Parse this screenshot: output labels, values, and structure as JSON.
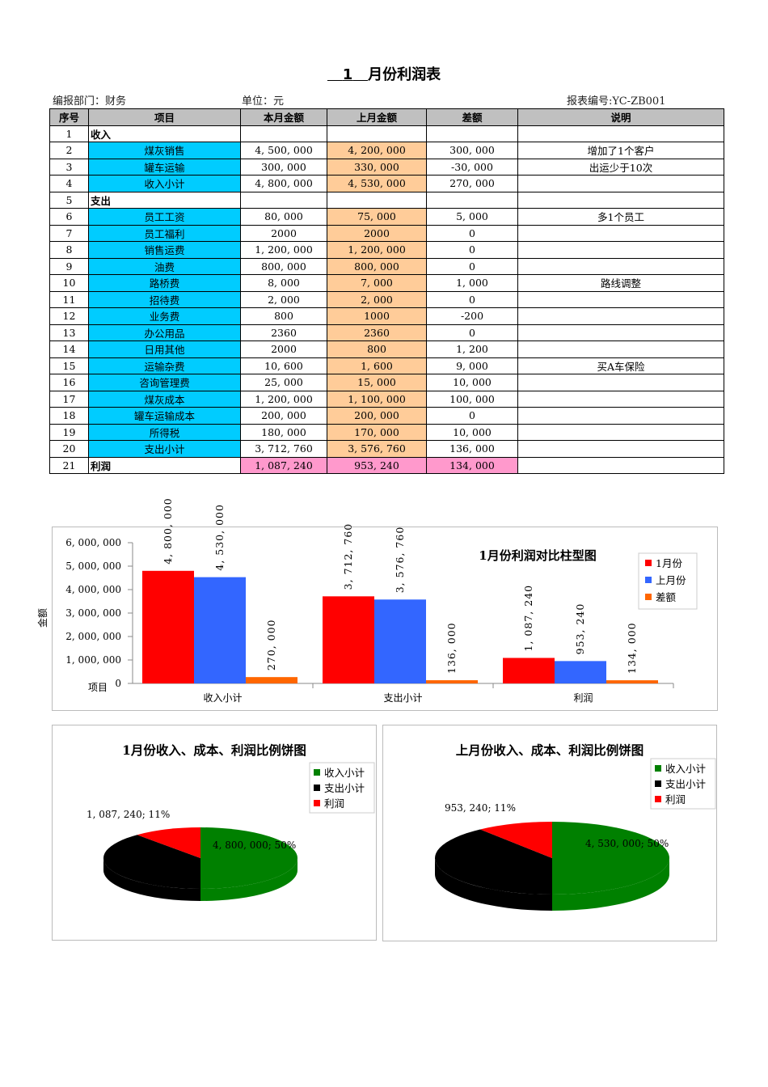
{
  "title_num": "1",
  "title_text": "月份利润表",
  "meta": {
    "dept": "编报部门：财务",
    "unit": "单位：元",
    "code": "报表编号:YC-ZB001"
  },
  "headers": [
    "序号",
    "项目",
    "本月金额",
    "上月金额",
    "差额",
    "说明"
  ],
  "rows": [
    [
      "1",
      "收入",
      "",
      "",
      "",
      ""
    ],
    [
      "2",
      "煤灰销售",
      "4, 500, 000",
      "4, 200, 000",
      "300, 000",
      "增加了1个客户"
    ],
    [
      "3",
      "罐车运输",
      "300, 000",
      "330, 000",
      "-30, 000",
      "出运少于10次"
    ],
    [
      "4",
      "收入小计",
      "4, 800, 000",
      "4, 530, 000",
      "270, 000",
      ""
    ],
    [
      "5",
      "支出",
      "",
      "",
      "",
      ""
    ],
    [
      "6",
      "员工工资",
      "80, 000",
      "75, 000",
      "5, 000",
      "多1个员工"
    ],
    [
      "7",
      "员工福利",
      "2000",
      "2000",
      "0",
      ""
    ],
    [
      "8",
      "销售运费",
      "1, 200, 000",
      "1, 200, 000",
      "0",
      ""
    ],
    [
      "9",
      "油费",
      "800, 000",
      "800, 000",
      "0",
      ""
    ],
    [
      "10",
      "路桥费",
      "8, 000",
      "7, 000",
      "1, 000",
      "路线调整"
    ],
    [
      "11",
      "招待费",
      "2, 000",
      "2, 000",
      "0",
      ""
    ],
    [
      "12",
      "业务费",
      "800",
      "1000",
      "-200",
      ""
    ],
    [
      "13",
      "办公用品",
      "2360",
      "2360",
      "0",
      ""
    ],
    [
      "14",
      "日用其他",
      "2000",
      "800",
      "1, 200",
      ""
    ],
    [
      "15",
      "运输杂费",
      "10, 600",
      "1, 600",
      "9, 000",
      "买A车保险"
    ],
    [
      "16",
      "咨询管理费",
      "25, 000",
      "15, 000",
      "10, 000",
      ""
    ],
    [
      "17",
      "煤灰成本",
      "1, 200, 000",
      "1, 100, 000",
      "100, 000",
      ""
    ],
    [
      "18",
      "罐车运输成本",
      "200, 000",
      "200, 000",
      "0",
      ""
    ],
    [
      "19",
      "所得税",
      "180, 000",
      "170, 000",
      "10, 000",
      ""
    ],
    [
      "20",
      "支出小计",
      "3, 712, 760",
      "3, 576, 760",
      "136, 000",
      ""
    ],
    [
      "21",
      "利润",
      "1, 087, 240",
      "953, 240",
      "134, 000",
      ""
    ]
  ],
  "chart_data": [
    {
      "type": "bar",
      "title": "1月份利润对比柱型图",
      "xlabel": "项目",
      "ylabel": "金额",
      "ylim": [
        0,
        6000000
      ],
      "yticks": [
        "0",
        "1, 000, 000",
        "2, 000, 000",
        "3, 000, 000",
        "4, 000, 000",
        "5, 000, 000",
        "6, 000, 000"
      ],
      "categories": [
        "收入小计",
        "支出小计",
        "利润"
      ],
      "series": [
        {
          "name": "1月份",
          "color": "#ff0000",
          "values": [
            4800000,
            3712760,
            1087240
          ],
          "labels": [
            "4, 800, 000",
            "3, 712, 760",
            "1, 087, 240"
          ]
        },
        {
          "name": "上月份",
          "color": "#3366ff",
          "values": [
            4530000,
            3576760,
            953240
          ],
          "labels": [
            "4, 530, 000",
            "3, 576, 760",
            "953, 240"
          ]
        },
        {
          "name": "差额",
          "color": "#ff6600",
          "values": [
            270000,
            136000,
            134000
          ],
          "labels": [
            "270, 000",
            "136, 000",
            "134, 000"
          ]
        }
      ],
      "legend": "right"
    },
    {
      "type": "pie",
      "title": "1月份收入、成本、利润比例饼图",
      "categories": [
        "收入小计",
        "支出小计",
        "利润"
      ],
      "values": [
        4800000,
        3712760,
        1087240
      ],
      "colors": [
        "#008000",
        "#000000",
        "#ff0000"
      ],
      "labels": [
        "4, 800, 000; 50%",
        "",
        "1, 087, 240; 11%"
      ],
      "legend": "right"
    },
    {
      "type": "pie",
      "title": "上月份收入、成本、利润比例饼图",
      "categories": [
        "收入小计",
        "支出小计",
        "利润"
      ],
      "values": [
        4530000,
        3576760,
        953240
      ],
      "colors": [
        "#008000",
        "#000000",
        "#ff0000"
      ],
      "labels": [
        "4, 530, 000; 50%",
        "",
        "953, 240; 11%"
      ],
      "legend": "right"
    }
  ]
}
